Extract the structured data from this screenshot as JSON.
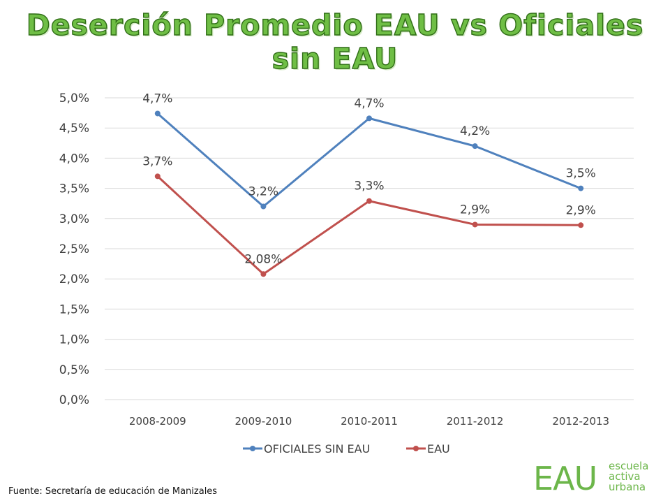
{
  "title_lines": [
    "Deserción Promedio EAU vs Oficiales",
    "sin EAU"
  ],
  "source_note": "Fuente: Secretaría de educación de Manizales",
  "logo": {
    "mark": "EAU",
    "words": [
      "escuela",
      "activa",
      "urbana"
    ]
  },
  "colors": {
    "series1": "#4f81bd",
    "series2": "#c0504d",
    "title": "#6fbe45",
    "logo": "#6cb64a"
  },
  "chart_data": {
    "type": "line",
    "categories": [
      "2008-2009",
      "2009-2010",
      "2010-2011",
      "2011-2012",
      "2012-2013"
    ],
    "series": [
      {
        "name": "OFICIALES SIN EAU",
        "values": [
          4.74,
          3.2,
          4.66,
          4.2,
          3.5
        ],
        "labels": [
          "4,7%",
          "3,2%",
          "4,7%",
          "4,2%",
          "3,5%"
        ]
      },
      {
        "name": "EAU",
        "values": [
          3.7,
          2.08,
          3.29,
          2.9,
          2.89
        ],
        "labels": [
          "3,7%",
          "2,08%",
          "3,3%",
          "2,9%",
          "2,9%"
        ]
      }
    ],
    "ylim": [
      0,
      5
    ],
    "yticks": [
      "0,0%",
      "0,5%",
      "1,0%",
      "1,5%",
      "2,0%",
      "2,5%",
      "3,0%",
      "3,5%",
      "4,0%",
      "4,5%",
      "5,0%"
    ],
    "grid": true,
    "legend": "bottom"
  }
}
